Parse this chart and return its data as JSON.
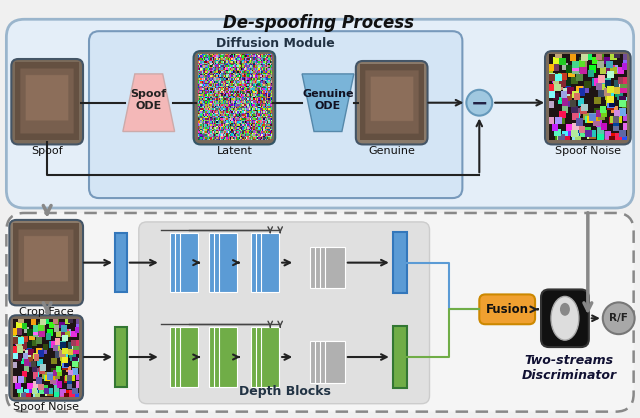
{
  "title": "De-spoofing Process",
  "subtitle": "Two-streams\nDiscriminator",
  "diffusion_label": "Diffusion Module",
  "depth_label": "Depth Blocks",
  "fusion_label": "Fusion",
  "rf_label": "R/F",
  "top_labels": [
    "Spoof",
    "Latent",
    "Genuine",
    "Spoof Noise"
  ],
  "bottom_labels": [
    "Crop Face",
    "Spoof Noise"
  ],
  "spoof_ode_label": "Spoof\nODE",
  "genuine_ode_label": "Genuine\nODE",
  "bg_color": "#f0f0f0",
  "top_section_color": "#e4eef8",
  "bottom_section_color": "#f8f8f8",
  "diffusion_box_color": "#dce9f7",
  "depth_bg_color": "#e8e8e8",
  "blue_color": "#5b9bd5",
  "green_color": "#70ad47",
  "pink_ode_color": "#f4b8b8",
  "blue_ode_color": "#7ab4d8",
  "minus_circle_color": "#85c0d8",
  "fusion_color": "#f0a030",
  "rf_color": "#a8a8a8",
  "arrow_color": "#333333",
  "gray_feat_color": "#b0b0b0",
  "face_border_color": "#555577"
}
